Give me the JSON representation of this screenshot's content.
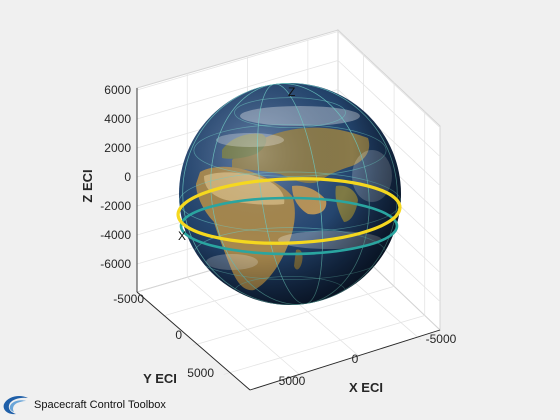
{
  "chart_data": {
    "type": "3d-surface",
    "title": "",
    "xlabel": "X ECI",
    "ylabel": "Y ECI",
    "zlabel": "Z ECI",
    "z_ticks": [
      "6000",
      "4000",
      "2000",
      "0",
      "-2000",
      "-4000",
      "-6000"
    ],
    "y_ticks": [
      "-5000",
      "0",
      "5000"
    ],
    "x_ticks": [
      "5000",
      "0",
      "-5000"
    ],
    "axis_markers": {
      "z": "Z",
      "x": "X"
    },
    "grid": true,
    "sphere": {
      "name": "",
      "texture": "earth",
      "radius": 6378
    },
    "rings": [
      {
        "color": "#f5d81f",
        "description_key": "inclined"
      },
      {
        "color": "#2aa5a0",
        "description_key": "equatorial"
      }
    ]
  },
  "footer": {
    "logo": "spacecraft-swirl-icon",
    "text": "Spacecraft Control Toolbox"
  },
  "colors": {
    "background": "#f0f0f0",
    "ocean": "#1d3a63",
    "yellow_ring": "#f5d81f",
    "teal_ring": "#2aa5a0"
  }
}
